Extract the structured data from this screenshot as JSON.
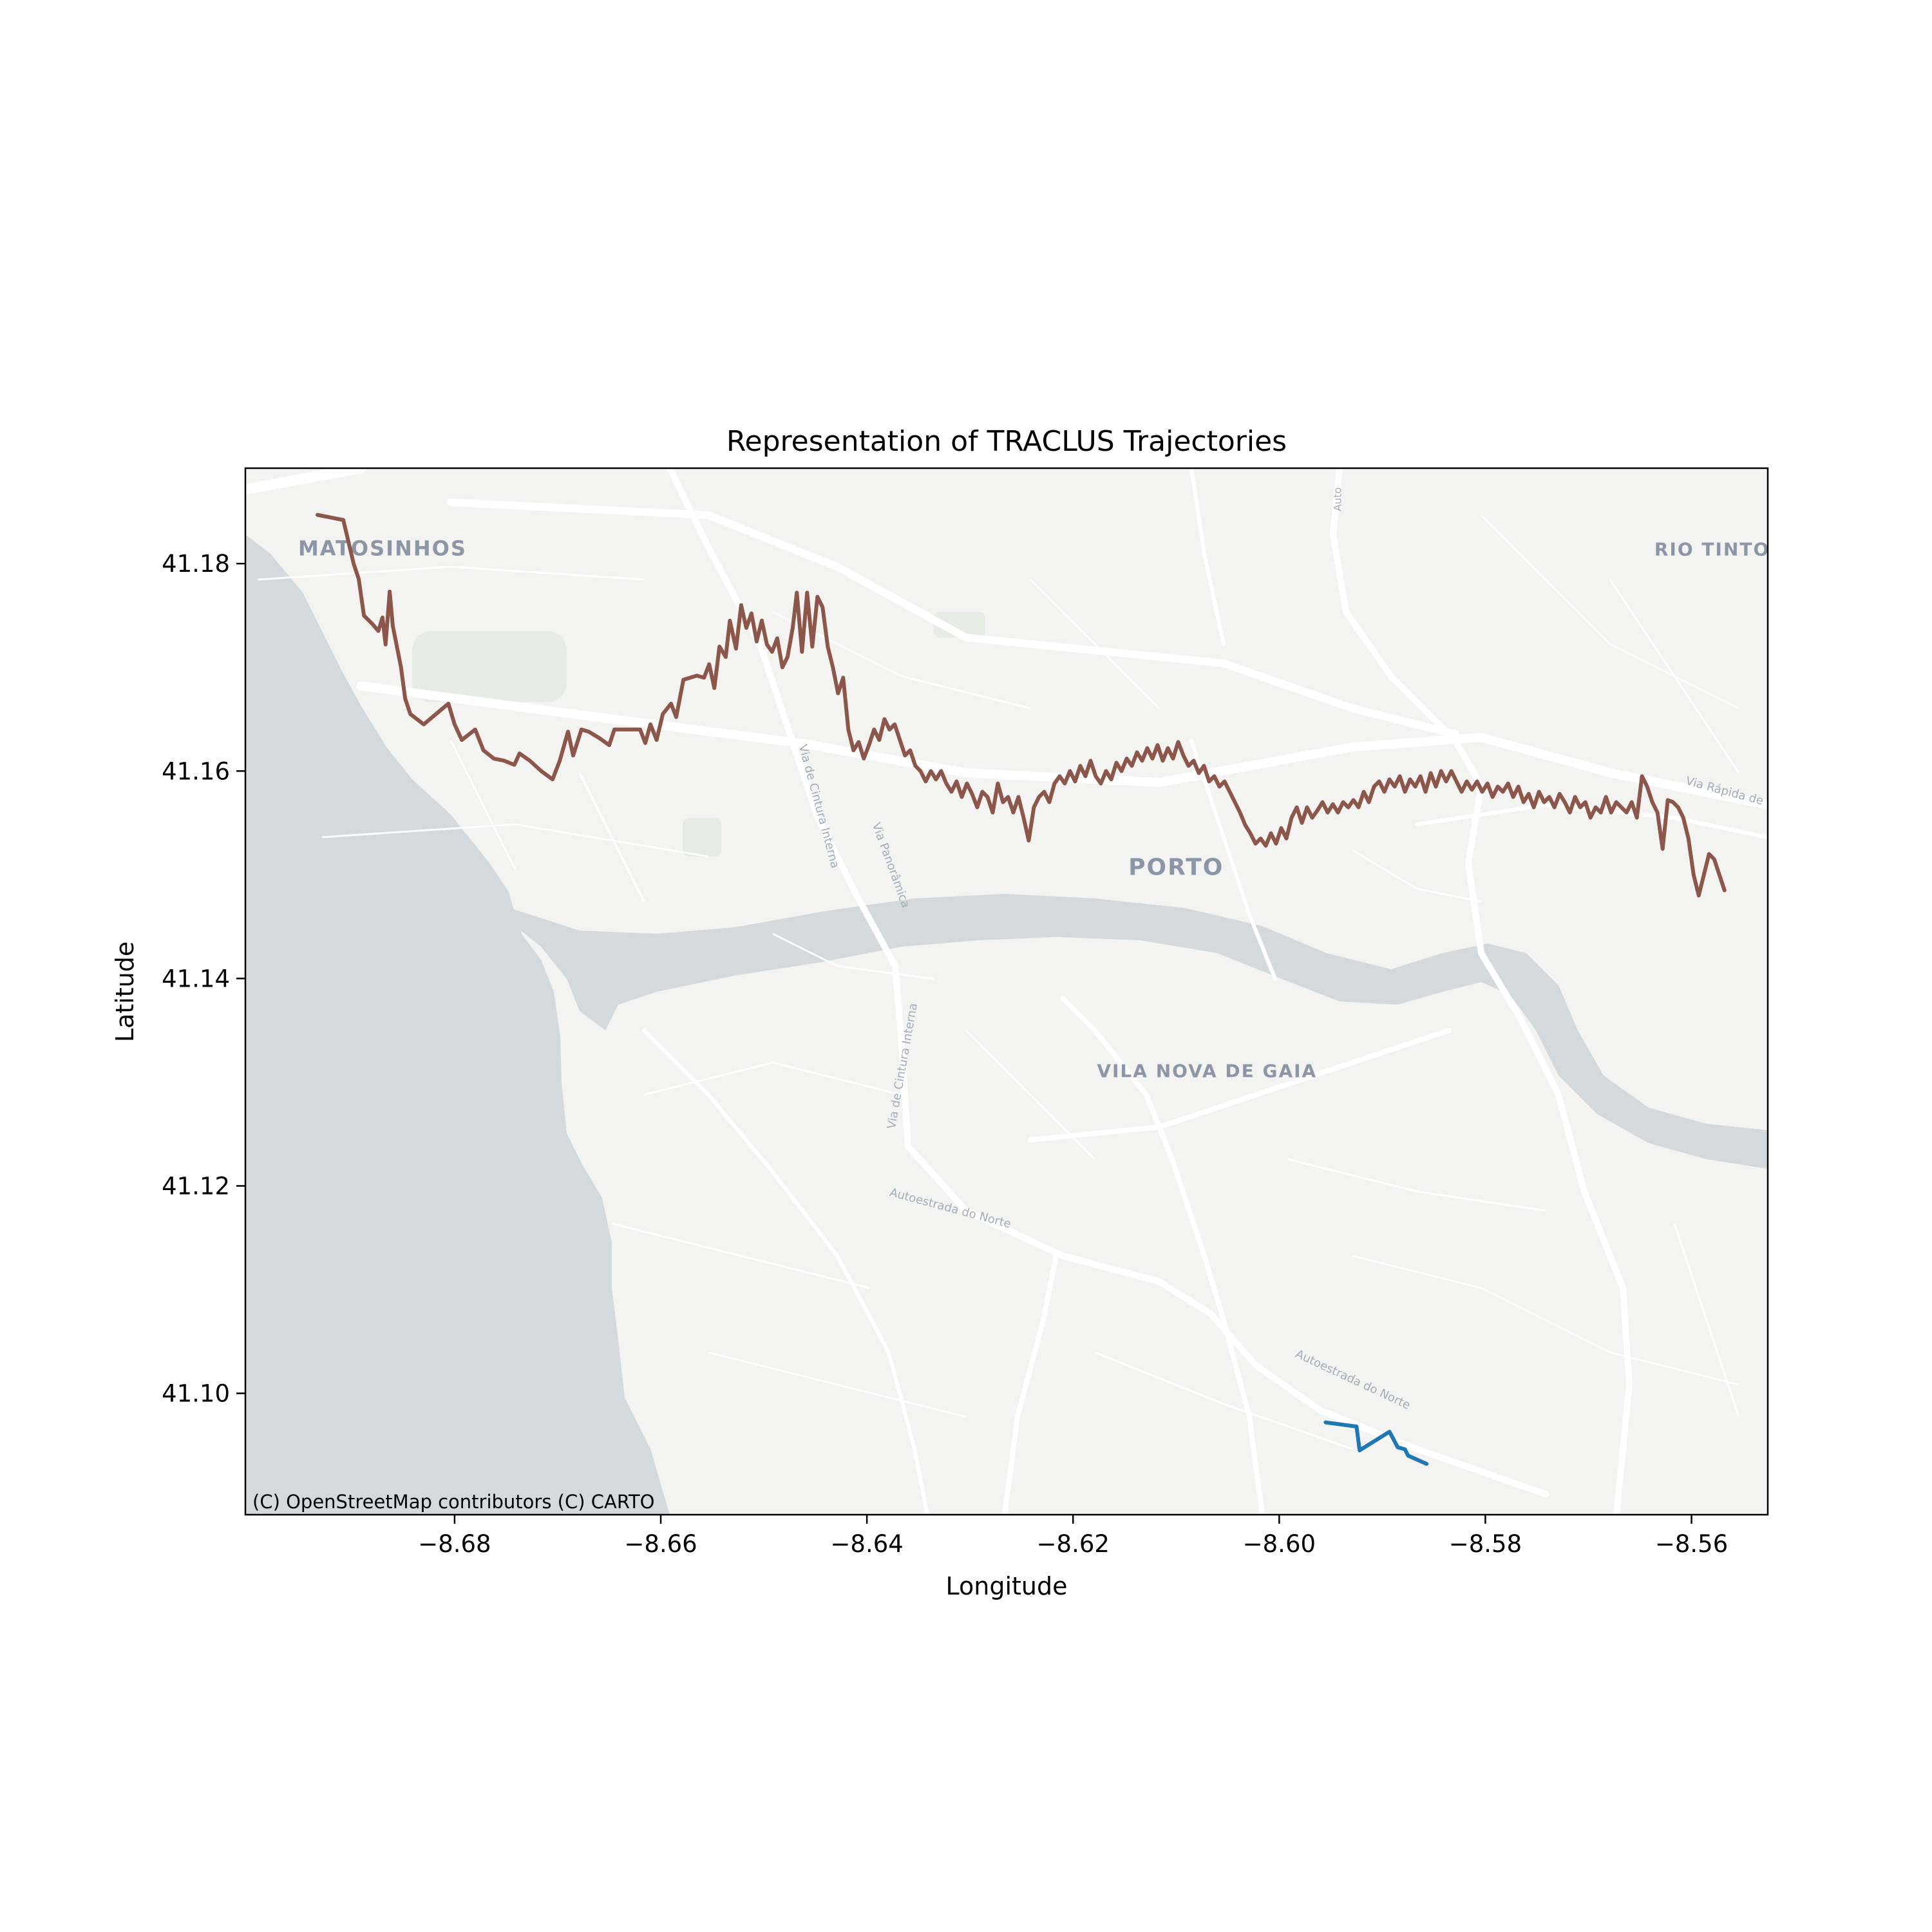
{
  "chart_data": {
    "type": "line",
    "title": "Representation of TRACLUS Trajectories",
    "xlabel": "Longitude",
    "ylabel": "Latitude",
    "xlim": [
      -8.7003,
      -8.5526
    ],
    "ylim": [
      41.0883,
      41.1892
    ],
    "xticks": [
      -8.68,
      -8.66,
      -8.64,
      -8.62,
      -8.6,
      -8.58,
      -8.56
    ],
    "xtick_labels": [
      "−8.68",
      "−8.66",
      "−8.64",
      "−8.62",
      "−8.60",
      "−8.58",
      "−8.56"
    ],
    "yticks": [
      41.1,
      41.12,
      41.14,
      41.16,
      41.18
    ],
    "ytick_labels": [
      "41.10",
      "41.12",
      "41.14",
      "41.16",
      "41.18"
    ],
    "grid": false,
    "series": [
      {
        "color": "#8c564b",
        "points": [
          [
            -8.6933,
            41.1847
          ],
          [
            -8.6908,
            41.1842
          ],
          [
            -8.6898,
            41.18
          ],
          [
            -8.6893,
            41.1785
          ],
          [
            -8.6888,
            41.175
          ],
          [
            -8.688,
            41.1742
          ],
          [
            -8.6874,
            41.1735
          ],
          [
            -8.687,
            41.1748
          ],
          [
            -8.6867,
            41.1722
          ],
          [
            -8.6863,
            41.1773
          ],
          [
            -8.686,
            41.174
          ],
          [
            -8.6852,
            41.17
          ],
          [
            -8.6848,
            41.167
          ],
          [
            -8.6843,
            41.1655
          ],
          [
            -8.683,
            41.1645
          ],
          [
            -8.6818,
            41.1655
          ],
          [
            -8.6806,
            41.1665
          ],
          [
            -8.68,
            41.1645
          ],
          [
            -8.6793,
            41.163
          ],
          [
            -8.678,
            41.164
          ],
          [
            -8.6772,
            41.162
          ],
          [
            -8.6762,
            41.1612
          ],
          [
            -8.6752,
            41.161
          ],
          [
            -8.6742,
            41.1606
          ],
          [
            -8.6737,
            41.1617
          ],
          [
            -8.6727,
            41.161
          ],
          [
            -8.6716,
            41.16
          ],
          [
            -8.6705,
            41.1592
          ],
          [
            -8.6698,
            41.161
          ],
          [
            -8.669,
            41.1638
          ],
          [
            -8.6685,
            41.1615
          ],
          [
            -8.6677,
            41.164
          ],
          [
            -8.667,
            41.1638
          ],
          [
            -8.666,
            41.1632
          ],
          [
            -8.665,
            41.1625
          ],
          [
            -8.6645,
            41.164
          ],
          [
            -8.663,
            41.164
          ],
          [
            -8.662,
            41.164
          ],
          [
            -8.6615,
            41.1627
          ],
          [
            -8.661,
            41.1645
          ],
          [
            -8.6604,
            41.163
          ],
          [
            -8.6598,
            41.1655
          ],
          [
            -8.659,
            41.1665
          ],
          [
            -8.6585,
            41.1652
          ],
          [
            -8.6578,
            41.1688
          ],
          [
            -8.6565,
            41.1692
          ],
          [
            -8.6558,
            41.169
          ],
          [
            -8.6553,
            41.1703
          ],
          [
            -8.6548,
            41.168
          ],
          [
            -8.6543,
            41.172
          ],
          [
            -8.6537,
            41.171
          ],
          [
            -8.6533,
            41.1745
          ],
          [
            -8.6527,
            41.1718
          ],
          [
            -8.6522,
            41.176
          ],
          [
            -8.6517,
            41.1738
          ],
          [
            -8.6512,
            41.1752
          ],
          [
            -8.6507,
            41.1725
          ],
          [
            -8.6502,
            41.1745
          ],
          [
            -8.6497,
            41.1722
          ],
          [
            -8.6492,
            41.1715
          ],
          [
            -8.6487,
            41.1728
          ],
          [
            -8.6482,
            41.17
          ],
          [
            -8.6477,
            41.171
          ],
          [
            -8.6472,
            41.1738
          ],
          [
            -8.6468,
            41.1772
          ],
          [
            -8.6463,
            41.1715
          ],
          [
            -8.6458,
            41.1772
          ],
          [
            -8.6453,
            41.172
          ],
          [
            -8.6448,
            41.1768
          ],
          [
            -8.6443,
            41.1758
          ],
          [
            -8.6438,
            41.172
          ],
          [
            -8.6433,
            41.17
          ],
          [
            -8.6428,
            41.1675
          ],
          [
            -8.6423,
            41.169
          ],
          [
            -8.6418,
            41.164
          ],
          [
            -8.6413,
            41.162
          ],
          [
            -8.6408,
            41.1628
          ],
          [
            -8.6403,
            41.1612
          ],
          [
            -8.6398,
            41.1625
          ],
          [
            -8.6393,
            41.164
          ],
          [
            -8.6388,
            41.163
          ],
          [
            -8.6383,
            41.165
          ],
          [
            -8.6378,
            41.164
          ],
          [
            -8.6373,
            41.1645
          ],
          [
            -8.6368,
            41.163
          ],
          [
            -8.6363,
            41.1615
          ],
          [
            -8.6358,
            41.162
          ],
          [
            -8.6353,
            41.1605
          ],
          [
            -8.6348,
            41.16
          ],
          [
            -8.6343,
            41.159
          ],
          [
            -8.6338,
            41.16
          ],
          [
            -8.6333,
            41.1592
          ],
          [
            -8.6328,
            41.16
          ],
          [
            -8.6323,
            41.1588
          ],
          [
            -8.6318,
            41.158
          ],
          [
            -8.6313,
            41.159
          ],
          [
            -8.6308,
            41.1575
          ],
          [
            -8.6303,
            41.1588
          ],
          [
            -8.6298,
            41.1578
          ],
          [
            -8.6293,
            41.1565
          ],
          [
            -8.6288,
            41.158
          ],
          [
            -8.6283,
            41.1575
          ],
          [
            -8.6278,
            41.156
          ],
          [
            -8.6273,
            41.1588
          ],
          [
            -8.6268,
            41.157
          ],
          [
            -8.6263,
            41.1575
          ],
          [
            -8.6258,
            41.156
          ],
          [
            -8.6253,
            41.1575
          ],
          [
            -8.6248,
            41.1555
          ],
          [
            -8.6243,
            41.1533
          ],
          [
            -8.6238,
            41.1565
          ],
          [
            -8.6233,
            41.1575
          ],
          [
            -8.6228,
            41.158
          ],
          [
            -8.6223,
            41.157
          ],
          [
            -8.6218,
            41.1588
          ],
          [
            -8.6213,
            41.1595
          ],
          [
            -8.6208,
            41.1588
          ],
          [
            -8.6203,
            41.16
          ],
          [
            -8.6198,
            41.159
          ],
          [
            -8.6193,
            41.1605
          ],
          [
            -8.6188,
            41.1595
          ],
          [
            -8.6183,
            41.161
          ],
          [
            -8.6178,
            41.1595
          ],
          [
            -8.6173,
            41.1588
          ],
          [
            -8.6168,
            41.16
          ],
          [
            -8.6163,
            41.1592
          ],
          [
            -8.6158,
            41.1608
          ],
          [
            -8.6153,
            41.16
          ],
          [
            -8.6148,
            41.1612
          ],
          [
            -8.6143,
            41.1605
          ],
          [
            -8.6138,
            41.1618
          ],
          [
            -8.6133,
            41.161
          ],
          [
            -8.6128,
            41.1622
          ],
          [
            -8.6123,
            41.1612
          ],
          [
            -8.6118,
            41.1625
          ],
          [
            -8.6113,
            41.161
          ],
          [
            -8.6108,
            41.1622
          ],
          [
            -8.6103,
            41.1612
          ],
          [
            -8.6098,
            41.1628
          ],
          [
            -8.6093,
            41.1615
          ],
          [
            -8.6088,
            41.1605
          ],
          [
            -8.6083,
            41.161
          ],
          [
            -8.6078,
            41.1598
          ],
          [
            -8.6073,
            41.1605
          ],
          [
            -8.6068,
            41.159
          ],
          [
            -8.6063,
            41.1595
          ],
          [
            -8.6058,
            41.1585
          ],
          [
            -8.6053,
            41.159
          ],
          [
            -8.6048,
            41.158
          ],
          [
            -8.6043,
            41.157
          ],
          [
            -8.6038,
            41.156
          ],
          [
            -8.6033,
            41.1548
          ],
          [
            -8.6028,
            41.154
          ],
          [
            -8.6023,
            41.153
          ],
          [
            -8.6018,
            41.1535
          ],
          [
            -8.6013,
            41.1528
          ],
          [
            -8.6008,
            41.154
          ],
          [
            -8.6003,
            41.153
          ],
          [
            -8.5998,
            41.1545
          ],
          [
            -8.5993,
            41.1535
          ],
          [
            -8.5988,
            41.1555
          ],
          [
            -8.5983,
            41.1565
          ],
          [
            -8.5978,
            41.155
          ],
          [
            -8.5973,
            41.1565
          ],
          [
            -8.5968,
            41.1555
          ],
          [
            -8.5963,
            41.1562
          ],
          [
            -8.5958,
            41.157
          ],
          [
            -8.5953,
            41.156
          ],
          [
            -8.5948,
            41.1568
          ],
          [
            -8.5943,
            41.156
          ],
          [
            -8.5938,
            41.157
          ],
          [
            -8.5933,
            41.1565
          ],
          [
            -8.5928,
            41.1572
          ],
          [
            -8.5923,
            41.1565
          ],
          [
            -8.5918,
            41.158
          ],
          [
            -8.5913,
            41.157
          ],
          [
            -8.5908,
            41.1585
          ],
          [
            -8.5903,
            41.159
          ],
          [
            -8.5898,
            41.158
          ],
          [
            -8.5893,
            41.1592
          ],
          [
            -8.5888,
            41.1585
          ],
          [
            -8.5883,
            41.1595
          ],
          [
            -8.5878,
            41.158
          ],
          [
            -8.5873,
            41.1592
          ],
          [
            -8.5868,
            41.1585
          ],
          [
            -8.5863,
            41.1595
          ],
          [
            -8.5858,
            41.158
          ],
          [
            -8.5853,
            41.1598
          ],
          [
            -8.5848,
            41.1585
          ],
          [
            -8.5843,
            41.16
          ],
          [
            -8.5838,
            41.159
          ],
          [
            -8.5833,
            41.16
          ],
          [
            -8.5828,
            41.159
          ],
          [
            -8.5823,
            41.158
          ],
          [
            -8.5818,
            41.159
          ],
          [
            -8.5813,
            41.1582
          ],
          [
            -8.5808,
            41.159
          ],
          [
            -8.5803,
            41.158
          ],
          [
            -8.5798,
            41.1588
          ],
          [
            -8.5793,
            41.1575
          ],
          [
            -8.5788,
            41.1585
          ],
          [
            -8.5783,
            41.158
          ],
          [
            -8.5778,
            41.1588
          ],
          [
            -8.5773,
            41.1575
          ],
          [
            -8.5768,
            41.1585
          ],
          [
            -8.5763,
            41.157
          ],
          [
            -8.5758,
            41.1578
          ],
          [
            -8.5753,
            41.1565
          ],
          [
            -8.5748,
            41.158
          ],
          [
            -8.5743,
            41.157
          ],
          [
            -8.5738,
            41.1575
          ],
          [
            -8.5733,
            41.1565
          ],
          [
            -8.5728,
            41.1578
          ],
          [
            -8.5723,
            41.157
          ],
          [
            -8.5718,
            41.156
          ],
          [
            -8.5713,
            41.1575
          ],
          [
            -8.5708,
            41.1565
          ],
          [
            -8.5703,
            41.157
          ],
          [
            -8.5698,
            41.1555
          ],
          [
            -8.5693,
            41.1565
          ],
          [
            -8.5688,
            41.156
          ],
          [
            -8.5683,
            41.1575
          ],
          [
            -8.5678,
            41.156
          ],
          [
            -8.5673,
            41.157
          ],
          [
            -8.5668,
            41.1565
          ],
          [
            -8.5663,
            41.156
          ],
          [
            -8.5658,
            41.157
          ],
          [
            -8.5653,
            41.1555
          ],
          [
            -8.5648,
            41.1595
          ],
          [
            -8.5643,
            41.1585
          ],
          [
            -8.5638,
            41.157
          ],
          [
            -8.5633,
            41.156
          ],
          [
            -8.5628,
            41.1525
          ],
          [
            -8.5623,
            41.1572
          ],
          [
            -8.5618,
            41.157
          ],
          [
            -8.5613,
            41.1565
          ],
          [
            -8.5608,
            41.1555
          ],
          [
            -8.5603,
            41.1535
          ],
          [
            -8.5598,
            41.15
          ],
          [
            -8.5593,
            41.148
          ],
          [
            -8.5588,
            41.15
          ],
          [
            -8.5583,
            41.152
          ],
          [
            -8.5578,
            41.1515
          ],
          [
            -8.5573,
            41.15
          ],
          [
            -8.5568,
            41.1485
          ]
        ]
      },
      {
        "color": "#1f77b4",
        "points": [
          [
            -8.5955,
            41.0972
          ],
          [
            -8.5925,
            41.0968
          ],
          [
            -8.5922,
            41.0945
          ],
          [
            -8.5893,
            41.0963
          ],
          [
            -8.5885,
            41.0948
          ],
          [
            -8.5878,
            41.0946
          ],
          [
            -8.5875,
            41.094
          ],
          [
            -8.5857,
            41.0932
          ]
        ]
      }
    ],
    "basemap": {
      "attribution": "(C) OpenStreetMap contributors (C) CARTO",
      "place_labels": [
        {
          "text": "MATOSINHOS",
          "lon": -8.687,
          "lat": 41.1808
        },
        {
          "text": "RIO TINTO",
          "lon": -8.558,
          "lat": 41.1808
        },
        {
          "text": "PORTO",
          "lon": -8.61,
          "lat": 41.15
        },
        {
          "text": "VILA NOVA DE GAIA",
          "lon": -8.607,
          "lat": 41.1305
        }
      ],
      "road_labels": [
        {
          "text": "Autoestrada do Norte",
          "lon": -8.632,
          "lat": 41.1175
        },
        {
          "text": "Autoestrada do Norte",
          "lon": -8.593,
          "lat": 41.101
        },
        {
          "text": "Via de Cintura Interna",
          "lon": -8.6362,
          "lat": 41.1315
        },
        {
          "text": "Via de Cintura Interna",
          "lon": -8.645,
          "lat": 41.1565
        },
        {
          "text": "Via Panorâmica",
          "lon": -8.638,
          "lat": 41.1508
        },
        {
          "text": "Via Rápida de Co",
          "lon": -8.556,
          "lat": 41.1575
        },
        {
          "text": "Auto",
          "lon": -8.594,
          "lat": 41.1862
        }
      ]
    }
  }
}
